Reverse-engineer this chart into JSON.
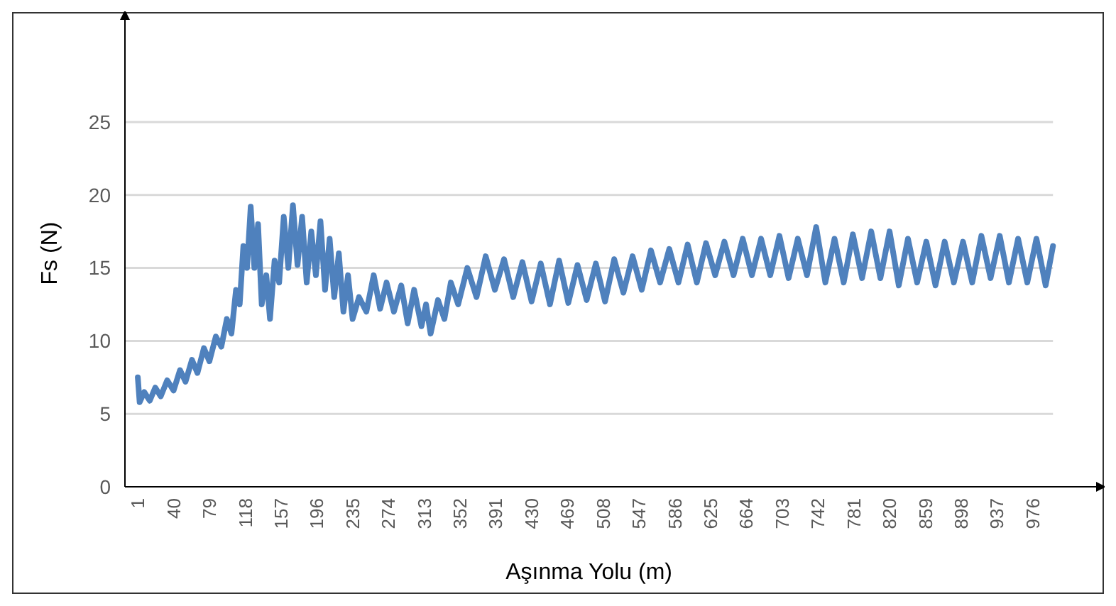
{
  "chart_data": {
    "type": "line",
    "xlabel": "Aşınma Yolu (m)",
    "ylabel": "Fs (N)",
    "xlim": [
      -13,
      1045
    ],
    "xticks": [
      1,
      40,
      79,
      118,
      157,
      196,
      235,
      274,
      313,
      352,
      391,
      430,
      469,
      508,
      547,
      586,
      625,
      664,
      703,
      742,
      781,
      820,
      859,
      898,
      937,
      976
    ],
    "ylim": [
      0,
      32
    ],
    "yticks": [
      0,
      5,
      10,
      15,
      20,
      25
    ],
    "grid": "y",
    "marker": "none",
    "line_style": "solid",
    "series": [
      {
        "color": "#4f81bd",
        "x": [
          1,
          3,
          8,
          14,
          20,
          26,
          33,
          40,
          47,
          53,
          60,
          66,
          73,
          79,
          86,
          92,
          98,
          103,
          108,
          112,
          116,
          120,
          124,
          128,
          132,
          136,
          141,
          145,
          150,
          155,
          160,
          165,
          170,
          175,
          180,
          185,
          190,
          195,
          200,
          205,
          210,
          215,
          220,
          225,
          230,
          235,
          242,
          250,
          258,
          265,
          272,
          280,
          288,
          295,
          302,
          310,
          315,
          320,
          328,
          335,
          342,
          350,
          360,
          370,
          380,
          390,
          400,
          410,
          420,
          430,
          440,
          450,
          460,
          470,
          480,
          490,
          500,
          510,
          520,
          530,
          540,
          550,
          560,
          570,
          580,
          590,
          600,
          610,
          620,
          630,
          640,
          650,
          660,
          670,
          680,
          690,
          700,
          710,
          720,
          730,
          740,
          750,
          760,
          770,
          780,
          790,
          800,
          810,
          820,
          830,
          840,
          850,
          860,
          870,
          880,
          890,
          900,
          910,
          920,
          930,
          940,
          950,
          960,
          970,
          980,
          990,
          998
        ],
        "values": [
          7.5,
          5.8,
          6.5,
          5.9,
          6.8,
          6.2,
          7.3,
          6.6,
          8,
          7.2,
          8.7,
          7.8,
          9.5,
          8.6,
          10.3,
          9.6,
          11.5,
          10.5,
          13.5,
          12.5,
          16.5,
          15,
          19.2,
          15,
          18,
          12.5,
          14.5,
          11.5,
          15.5,
          14,
          18.5,
          15,
          19.3,
          15.2,
          18.5,
          14,
          17.5,
          14.5,
          18.2,
          13.5,
          17,
          13,
          16,
          12,
          14.5,
          11.5,
          13,
          12,
          14.5,
          12.2,
          14,
          12,
          13.8,
          11.2,
          13.5,
          11,
          12.5,
          10.5,
          12.8,
          11.5,
          14,
          12.5,
          15,
          13,
          15.8,
          13.5,
          15.6,
          13,
          15.4,
          12.7,
          15.3,
          12.5,
          15.5,
          12.6,
          15.2,
          12.8,
          15.3,
          12.7,
          15.6,
          13.3,
          15.8,
          13.5,
          16.2,
          14,
          16.3,
          14,
          16.6,
          14,
          16.7,
          14.5,
          16.8,
          14.5,
          17,
          14.5,
          17,
          14.5,
          17.2,
          14.3,
          17,
          14.5,
          17.8,
          14,
          17,
          14,
          17.3,
          14.3,
          17.5,
          14.3,
          17.5,
          13.8,
          17,
          14,
          16.8,
          13.8,
          16.8,
          14,
          16.8,
          14,
          17.2,
          14.3,
          17.2,
          14,
          17,
          14,
          17,
          13.8,
          16.5
        ]
      }
    ]
  }
}
